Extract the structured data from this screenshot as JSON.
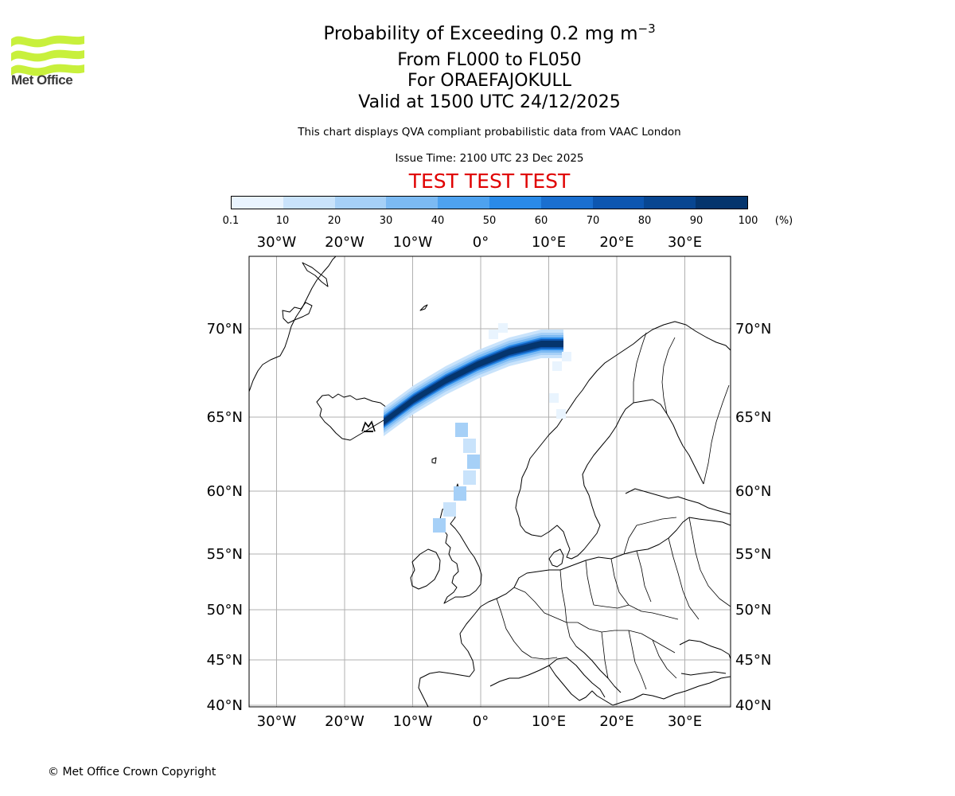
{
  "header": {
    "logo_text": "Met Office",
    "title_line1_prefix": "Probability of Exceeding 0.2 mg m",
    "title_line1_exponent": "−3",
    "title_line2": "From FL000 to FL050",
    "title_line3": "For ORAEFAJOKULL",
    "title_line4": "Valid at 1500 UTC 24/12/2025",
    "subtitle": "This chart displays QVA compliant probabilistic data from VAAC London",
    "issue_time": "Issue Time: 2100 UTC 23 Dec 2025",
    "test_banner": "TEST TEST TEST",
    "test_color": "#e00000"
  },
  "colorbar": {
    "tick_labels": [
      "0.1",
      "10",
      "20",
      "30",
      "40",
      "50",
      "60",
      "70",
      "80",
      "90",
      "100"
    ],
    "unit": "(%)",
    "colors": [
      "#e9f4fe",
      "#c9e3fb",
      "#a6d0f7",
      "#7cbaf3",
      "#4ea2ef",
      "#2a8ae8",
      "#1a6fd0",
      "#0d56b0",
      "#084691",
      "#05356d"
    ]
  },
  "map": {
    "lon_labels": [
      "30°W",
      "20°W",
      "10°W",
      "0°",
      "10°E",
      "20°E",
      "30°E"
    ],
    "lat_labels": [
      "70°N",
      "65°N",
      "60°N",
      "55°N",
      "50°N",
      "45°N",
      "40°N"
    ],
    "lon_values": [
      -30,
      -20,
      -10,
      0,
      10,
      20,
      30
    ],
    "lat_values": [
      70,
      65,
      60,
      55,
      50,
      45,
      40
    ],
    "volcano_icon": "volcano-icon",
    "source_volcano": "ORAEFAJOKULL"
  },
  "footer": {
    "copyright": "© Met Office Crown Copyright"
  }
}
